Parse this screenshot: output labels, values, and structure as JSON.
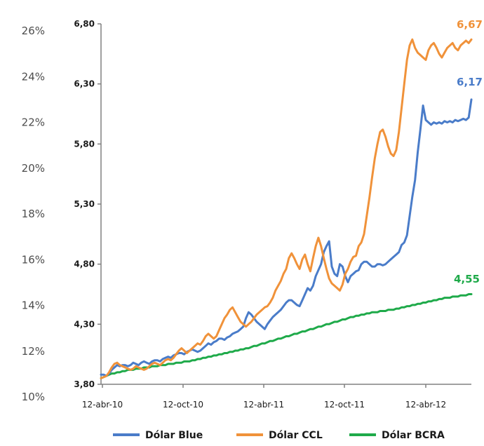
{
  "colors": {
    "blue": "#4a7cc9",
    "orange": "#f0923a",
    "green": "#1faa4a",
    "axis": "#808080",
    "text": "#1a1a1a"
  },
  "chart_data": {
    "type": "line",
    "title": "",
    "xlabel": "",
    "ylabel": "",
    "grid": false,
    "legend_position": "bottom",
    "ylim": [
      3.8,
      6.8
    ],
    "secondary_ylim_percent": [
      10,
      26
    ],
    "left_axis_ticks": [
      "26%",
      "24%",
      "22%",
      "20%",
      "18%",
      "16%",
      "14%",
      "12%",
      "10%"
    ],
    "y_ticks": [
      "6,80",
      "6,30",
      "5,80",
      "5,30",
      "4,80",
      "4,30",
      "3,80"
    ],
    "x_ticks": [
      "12-abr-10",
      "12-oct-10",
      "12-abr-11",
      "12-oct-11",
      "12-abr-12"
    ],
    "end_labels": [
      "6,67",
      "6,17",
      "4,55"
    ],
    "series": [
      {
        "name": "Dólar Blue",
        "color": "#4a7cc9",
        "x": [
          0,
          1,
          2,
          3,
          4,
          5,
          6,
          7,
          8,
          9,
          10,
          11,
          12,
          13,
          14,
          15,
          16,
          17,
          18,
          19,
          20,
          21,
          22,
          23,
          24,
          25,
          26,
          27,
          28,
          29,
          30,
          31,
          32,
          33,
          34,
          35,
          36,
          37,
          38,
          39,
          40,
          41,
          42,
          43,
          44,
          45,
          46,
          47,
          48,
          49,
          50,
          51,
          52,
          53,
          54,
          55,
          56,
          57,
          58,
          59,
          60,
          61,
          62,
          63,
          64,
          65,
          66,
          67,
          68,
          69,
          70,
          71,
          72,
          73,
          74,
          75,
          76,
          77,
          78,
          79,
          80,
          81,
          82,
          83,
          84,
          85,
          86,
          87,
          88,
          89,
          90,
          91,
          92,
          93,
          94,
          95,
          96,
          97,
          98,
          99,
          100,
          101,
          102,
          103,
          104,
          105,
          106,
          107,
          108,
          109,
          110,
          111,
          112,
          113,
          114,
          115,
          116,
          117,
          118,
          119,
          120,
          121,
          122,
          123,
          124,
          125,
          126,
          127,
          128,
          129,
          130,
          131,
          132,
          133,
          134,
          135,
          136,
          137,
          138
        ],
        "values": [
          3.88,
          3.88,
          3.87,
          3.89,
          3.92,
          3.94,
          3.96,
          3.95,
          3.96,
          3.96,
          3.95,
          3.96,
          3.98,
          3.97,
          3.96,
          3.98,
          3.99,
          3.98,
          3.97,
          3.99,
          4.0,
          4.0,
          3.99,
          4.01,
          4.02,
          4.03,
          4.02,
          4.04,
          4.05,
          4.06,
          4.06,
          4.05,
          4.07,
          4.08,
          4.09,
          4.08,
          4.07,
          4.08,
          4.1,
          4.12,
          4.14,
          4.13,
          4.15,
          4.16,
          4.18,
          4.18,
          4.17,
          4.19,
          4.2,
          4.22,
          4.23,
          4.24,
          4.26,
          4.28,
          4.35,
          4.4,
          4.38,
          4.35,
          4.32,
          4.3,
          4.28,
          4.26,
          4.3,
          4.33,
          4.36,
          4.38,
          4.4,
          4.42,
          4.45,
          4.48,
          4.5,
          4.5,
          4.48,
          4.46,
          4.45,
          4.5,
          4.55,
          4.6,
          4.58,
          4.62,
          4.7,
          4.75,
          4.8,
          4.9,
          4.95,
          4.99,
          4.78,
          4.72,
          4.7,
          4.8,
          4.78,
          4.7,
          4.65,
          4.7,
          4.72,
          4.74,
          4.75,
          4.8,
          4.82,
          4.82,
          4.8,
          4.78,
          4.78,
          4.8,
          4.8,
          4.79,
          4.8,
          4.82,
          4.84,
          4.86,
          4.88,
          4.9,
          4.96,
          4.98,
          5.04,
          5.2,
          5.36,
          5.5,
          5.73,
          5.92,
          6.12,
          6.0,
          5.98,
          5.96,
          5.98,
          5.97,
          5.98,
          5.97,
          5.99,
          5.98,
          5.99,
          5.98,
          6.0,
          5.99,
          6.0,
          6.01,
          6.0,
          6.02,
          6.17
        ]
      },
      {
        "name": "Dólar CCL",
        "color": "#f0923a",
        "x": [
          0,
          1,
          2,
          3,
          4,
          5,
          6,
          7,
          8,
          9,
          10,
          11,
          12,
          13,
          14,
          15,
          16,
          17,
          18,
          19,
          20,
          21,
          22,
          23,
          24,
          25,
          26,
          27,
          28,
          29,
          30,
          31,
          32,
          33,
          34,
          35,
          36,
          37,
          38,
          39,
          40,
          41,
          42,
          43,
          44,
          45,
          46,
          47,
          48,
          49,
          50,
          51,
          52,
          53,
          54,
          55,
          56,
          57,
          58,
          59,
          60,
          61,
          62,
          63,
          64,
          65,
          66,
          67,
          68,
          69,
          70,
          71,
          72,
          73,
          74,
          75,
          76,
          77,
          78,
          79,
          80,
          81,
          82,
          83,
          84,
          85,
          86,
          87,
          88,
          89,
          90,
          91,
          92,
          93,
          94,
          95,
          96,
          97,
          98,
          99,
          100,
          101,
          102,
          103,
          104,
          105,
          106,
          107,
          108,
          109,
          110,
          111,
          112,
          113,
          114,
          115,
          116,
          117,
          118,
          119,
          120,
          121,
          122,
          123,
          124,
          125,
          126,
          127,
          128,
          129,
          130,
          131,
          132,
          133,
          134,
          135,
          136,
          137,
          138
        ],
        "values": [
          3.85,
          3.86,
          3.87,
          3.9,
          3.94,
          3.97,
          3.98,
          3.96,
          3.95,
          3.94,
          3.93,
          3.92,
          3.93,
          3.95,
          3.94,
          3.93,
          3.92,
          3.93,
          3.95,
          3.97,
          3.98,
          3.97,
          3.96,
          3.98,
          4.0,
          4.01,
          4.0,
          4.02,
          4.05,
          4.08,
          4.1,
          4.08,
          4.06,
          4.08,
          4.1,
          4.12,
          4.14,
          4.13,
          4.16,
          4.2,
          4.22,
          4.2,
          4.18,
          4.2,
          4.25,
          4.3,
          4.35,
          4.38,
          4.42,
          4.44,
          4.4,
          4.36,
          4.32,
          4.3,
          4.28,
          4.3,
          4.32,
          4.35,
          4.38,
          4.4,
          4.42,
          4.44,
          4.45,
          4.48,
          4.52,
          4.58,
          4.62,
          4.66,
          4.72,
          4.76,
          4.85,
          4.89,
          4.85,
          4.8,
          4.76,
          4.84,
          4.88,
          4.8,
          4.74,
          4.85,
          4.95,
          5.02,
          4.95,
          4.85,
          4.76,
          4.68,
          4.64,
          4.62,
          4.6,
          4.58,
          4.63,
          4.72,
          4.76,
          4.82,
          4.86,
          4.87,
          4.95,
          4.98,
          5.05,
          5.2,
          5.35,
          5.52,
          5.68,
          5.8,
          5.9,
          5.92,
          5.86,
          5.78,
          5.72,
          5.7,
          5.75,
          5.9,
          6.1,
          6.3,
          6.5,
          6.62,
          6.67,
          6.6,
          6.56,
          6.54,
          6.52,
          6.5,
          6.58,
          6.62,
          6.64,
          6.6,
          6.55,
          6.52,
          6.56,
          6.6,
          6.62,
          6.64,
          6.6,
          6.58,
          6.62,
          6.64,
          6.66,
          6.64,
          6.67
        ]
      },
      {
        "name": "Dólar BCRA",
        "color": "#1faa4a",
        "x": [
          0,
          1,
          2,
          3,
          4,
          5,
          6,
          7,
          8,
          9,
          10,
          11,
          12,
          13,
          14,
          15,
          16,
          17,
          18,
          19,
          20,
          21,
          22,
          23,
          24,
          25,
          26,
          27,
          28,
          29,
          30,
          31,
          32,
          33,
          34,
          35,
          36,
          37,
          38,
          39,
          40,
          41,
          42,
          43,
          44,
          45,
          46,
          47,
          48,
          49,
          50,
          51,
          52,
          53,
          54,
          55,
          56,
          57,
          58,
          59,
          60,
          61,
          62,
          63,
          64,
          65,
          66,
          67,
          68,
          69,
          70,
          71,
          72,
          73,
          74,
          75,
          76,
          77,
          78,
          79,
          80,
          81,
          82,
          83,
          84,
          85,
          86,
          87,
          88,
          89,
          90,
          91,
          92,
          93,
          94,
          95,
          96,
          97,
          98,
          99,
          100,
          101,
          102,
          103,
          104,
          105,
          106,
          107,
          108,
          109,
          110,
          111,
          112,
          113,
          114,
          115,
          116,
          117,
          118,
          119,
          120,
          121,
          122,
          123,
          124,
          125,
          126,
          127,
          128,
          129,
          130,
          131,
          132,
          133,
          134,
          135,
          136,
          137,
          138
        ],
        "values": [
          3.85,
          3.86,
          3.87,
          3.88,
          3.89,
          3.89,
          3.9,
          3.9,
          3.91,
          3.91,
          3.92,
          3.92,
          3.92,
          3.93,
          3.93,
          3.93,
          3.94,
          3.94,
          3.94,
          3.95,
          3.95,
          3.95,
          3.96,
          3.96,
          3.96,
          3.97,
          3.97,
          3.97,
          3.98,
          3.98,
          3.98,
          3.99,
          3.99,
          3.99,
          4.0,
          4.0,
          4.01,
          4.01,
          4.02,
          4.02,
          4.03,
          4.03,
          4.04,
          4.04,
          4.05,
          4.05,
          4.06,
          4.06,
          4.07,
          4.07,
          4.08,
          4.08,
          4.09,
          4.09,
          4.1,
          4.1,
          4.11,
          4.12,
          4.12,
          4.13,
          4.14,
          4.14,
          4.15,
          4.16,
          4.16,
          4.17,
          4.18,
          4.18,
          4.19,
          4.2,
          4.2,
          4.21,
          4.22,
          4.22,
          4.23,
          4.24,
          4.24,
          4.25,
          4.26,
          4.26,
          4.27,
          4.28,
          4.28,
          4.29,
          4.3,
          4.3,
          4.31,
          4.32,
          4.32,
          4.33,
          4.34,
          4.34,
          4.35,
          4.36,
          4.36,
          4.37,
          4.37,
          4.38,
          4.38,
          4.39,
          4.39,
          4.4,
          4.4,
          4.4,
          4.41,
          4.41,
          4.41,
          4.42,
          4.42,
          4.42,
          4.43,
          4.43,
          4.44,
          4.44,
          4.45,
          4.45,
          4.46,
          4.46,
          4.47,
          4.47,
          4.48,
          4.48,
          4.49,
          4.49,
          4.5,
          4.5,
          4.51,
          4.51,
          4.52,
          4.52,
          4.52,
          4.53,
          4.53,
          4.53,
          4.54,
          4.54,
          4.54,
          4.55,
          4.55
        ]
      }
    ]
  }
}
